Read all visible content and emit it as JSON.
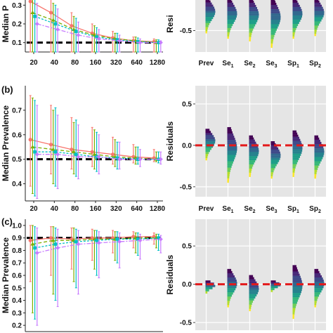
{
  "chart_data": [
    {
      "panel": "a",
      "side": "left",
      "type": "line",
      "ylabel": "Median P",
      "x_labels": [
        "20",
        "40",
        "80",
        "160",
        "320",
        "640",
        "1280"
      ],
      "ylim": [
        0.05,
        0.35
      ],
      "yticks": [
        0.1,
        0.2,
        0.3
      ],
      "reference_y": 0.1,
      "colors": [
        "#f8766d",
        "#7cae00",
        "#00bfc4",
        "#c77cff"
      ],
      "series": [
        {
          "values": [
            0.32,
            0.26,
            0.19,
            0.15,
            0.125,
            0.11,
            0.105
          ],
          "err_low": [
            0.0,
            0.0,
            0.0,
            0.0,
            0.0,
            0.0,
            0.0
          ],
          "err_high": [
            0.35,
            0.33,
            0.26,
            0.2,
            0.16,
            0.13,
            0.12
          ]
        },
        {
          "values": [
            0.26,
            0.22,
            0.17,
            0.14,
            0.12,
            0.11,
            0.1
          ],
          "err_low": [
            0.0,
            0.0,
            0.0,
            0.0,
            0.0,
            0.0,
            0.0
          ],
          "err_high": [
            0.34,
            0.31,
            0.24,
            0.19,
            0.15,
            0.13,
            0.115
          ]
        },
        {
          "values": [
            0.24,
            0.2,
            0.16,
            0.13,
            0.115,
            0.105,
            0.1
          ],
          "err_low": [
            0.0,
            0.0,
            0.0,
            0.0,
            0.0,
            0.0,
            0.0
          ],
          "err_high": [
            0.33,
            0.3,
            0.23,
            0.18,
            0.15,
            0.125,
            0.115
          ]
        },
        {
          "values": [
            0.2,
            0.17,
            0.14,
            0.12,
            0.11,
            0.1,
            0.1
          ],
          "err_low": [
            0.0,
            0.0,
            0.0,
            0.0,
            0.0,
            0.0,
            0.0
          ],
          "err_high": [
            0.31,
            0.28,
            0.21,
            0.17,
            0.14,
            0.12,
            0.11
          ]
        }
      ]
    },
    {
      "panel": "a",
      "side": "right",
      "type": "violin",
      "ylabel": "Resi",
      "categories": [
        "Prev",
        "Se1",
        "Se2",
        "Se3",
        "Sp1",
        "Sp2"
      ],
      "ylim": [
        -0.9,
        0.15
      ],
      "yticks": [
        -0.5
      ],
      "distributions": [
        {
          "min": -0.55,
          "max": 0.1
        },
        {
          "min": -0.65,
          "max": 0.1
        },
        {
          "min": -0.7,
          "max": 0.1
        },
        {
          "min": -0.82,
          "max": 0.1
        },
        {
          "min": -0.65,
          "max": 0.1
        },
        {
          "min": -0.6,
          "max": 0.1
        }
      ]
    },
    {
      "panel": "b",
      "side": "left",
      "type": "line",
      "ylabel": "Median Prevalence",
      "x_labels": [
        "20",
        "40",
        "80",
        "160",
        "320",
        "640",
        "1280"
      ],
      "ylim": [
        0.33,
        0.8
      ],
      "yticks": [
        0.4,
        0.5,
        0.6,
        0.7
      ],
      "reference_y": 0.5,
      "colors": [
        "#f8766d",
        "#7cae00",
        "#00bfc4",
        "#c77cff"
      ],
      "series": [
        {
          "values": [
            0.58,
            0.56,
            0.54,
            0.53,
            0.52,
            0.51,
            0.505
          ],
          "err_low": [
            0.39,
            0.44,
            0.46,
            0.47,
            0.48,
            0.485,
            0.49
          ],
          "err_high": [
            0.76,
            0.72,
            0.67,
            0.63,
            0.59,
            0.56,
            0.54
          ]
        },
        {
          "values": [
            0.55,
            0.54,
            0.53,
            0.52,
            0.51,
            0.505,
            0.5
          ],
          "err_low": [
            0.36,
            0.4,
            0.44,
            0.46,
            0.47,
            0.48,
            0.49
          ],
          "err_high": [
            0.75,
            0.7,
            0.65,
            0.62,
            0.58,
            0.55,
            0.53
          ]
        },
        {
          "values": [
            0.53,
            0.53,
            0.52,
            0.51,
            0.505,
            0.5,
            0.5
          ],
          "err_low": [
            0.35,
            0.39,
            0.43,
            0.45,
            0.46,
            0.48,
            0.485
          ],
          "err_high": [
            0.74,
            0.71,
            0.66,
            0.61,
            0.57,
            0.55,
            0.53
          ]
        },
        {
          "values": [
            0.52,
            0.52,
            0.51,
            0.51,
            0.5,
            0.5,
            0.5
          ],
          "err_low": [
            0.34,
            0.38,
            0.42,
            0.44,
            0.46,
            0.47,
            0.48
          ],
          "err_high": [
            0.72,
            0.68,
            0.64,
            0.6,
            0.57,
            0.54,
            0.53
          ]
        }
      ]
    },
    {
      "panel": "b",
      "side": "right",
      "type": "violin",
      "ylabel": "Residuals",
      "categories": [
        "Prev",
        "Se1",
        "Se2",
        "Se3",
        "Sp1",
        "Sp2"
      ],
      "ylim": [
        -0.62,
        0.72
      ],
      "yticks": [
        -0.5,
        0.0,
        0.5
      ],
      "reference_y": 0.0,
      "distributions": [
        {
          "min": -0.18,
          "max": 0.2
        },
        {
          "min": -0.45,
          "max": 0.22
        },
        {
          "min": -0.38,
          "max": 0.12
        },
        {
          "min": -0.4,
          "max": 0.05
        },
        {
          "min": -0.38,
          "max": 0.18
        },
        {
          "min": -0.4,
          "max": 0.12
        }
      ]
    },
    {
      "panel": "c",
      "side": "left",
      "type": "line",
      "ylabel": "Median Prevalence",
      "x_labels": [
        "20",
        "40",
        "80",
        "160",
        "320",
        "640",
        "1280"
      ],
      "ylim": [
        0.15,
        1.05
      ],
      "yticks": [
        0.2,
        0.3,
        0.4,
        0.5,
        0.6,
        0.7,
        0.8,
        0.9,
        1.0
      ],
      "reference_y": 0.9,
      "colors": [
        "#f8766d",
        "#7cae00",
        "#00bfc4",
        "#c77cff"
      ],
      "series": [
        {
          "values": [
            0.88,
            0.9,
            0.89,
            0.9,
            0.9,
            0.91,
            0.91
          ],
          "err_low": [
            0.55,
            0.6,
            0.65,
            0.72,
            0.78,
            0.82,
            0.85
          ],
          "err_high": [
            1.0,
            0.99,
            0.98,
            0.97,
            0.96,
            0.95,
            0.94
          ]
        },
        {
          "values": [
            0.85,
            0.88,
            0.88,
            0.89,
            0.89,
            0.9,
            0.9
          ],
          "err_low": [
            0.3,
            0.45,
            0.55,
            0.65,
            0.72,
            0.78,
            0.82
          ],
          "err_high": [
            1.0,
            0.99,
            0.98,
            0.96,
            0.95,
            0.94,
            0.93
          ]
        },
        {
          "values": [
            0.82,
            0.85,
            0.87,
            0.88,
            0.89,
            0.89,
            0.9
          ],
          "err_low": [
            0.25,
            0.4,
            0.5,
            0.6,
            0.7,
            0.76,
            0.8
          ],
          "err_high": [
            0.99,
            0.98,
            0.97,
            0.96,
            0.95,
            0.94,
            0.93
          ]
        },
        {
          "values": [
            0.78,
            0.82,
            0.85,
            0.86,
            0.87,
            0.88,
            0.89
          ],
          "err_low": [
            0.2,
            0.35,
            0.45,
            0.58,
            0.66,
            0.73,
            0.78
          ],
          "err_high": [
            0.98,
            0.97,
            0.96,
            0.95,
            0.94,
            0.93,
            0.92
          ]
        }
      ]
    },
    {
      "panel": "c",
      "side": "right",
      "type": "violin",
      "ylabel": "Residuals",
      "categories": [
        "Prev",
        "Se1",
        "Se2",
        "Se3",
        "Sp1",
        "Sp2"
      ],
      "ylim": [
        -0.6,
        0.85
      ],
      "yticks": [
        -0.5,
        0.0,
        0.5
      ],
      "reference_y": 0.0,
      "distributions": [
        {
          "min": -0.12,
          "max": 0.05
        },
        {
          "min": -0.3,
          "max": 0.2
        },
        {
          "min": -0.35,
          "max": 0.12
        },
        {
          "min": -0.1,
          "max": 0.05
        },
        {
          "min": -0.45,
          "max": 0.25
        },
        {
          "min": -0.3,
          "max": 0.2
        }
      ]
    }
  ],
  "panel_labels": [
    "(b)",
    "(c)"
  ],
  "violin_palette": [
    "#fde725",
    "#b5de2b",
    "#6ece58",
    "#35b779",
    "#1f9e89",
    "#26828e",
    "#31688e",
    "#3e4989",
    "#482878",
    "#440154"
  ],
  "category_display": [
    {
      "main": "Prev",
      "sub": ""
    },
    {
      "main": "Se",
      "sub": "1"
    },
    {
      "main": "Se",
      "sub": "2"
    },
    {
      "main": "Se",
      "sub": "3"
    },
    {
      "main": "Sp",
      "sub": "1"
    },
    {
      "main": "Sp",
      "sub": "2"
    }
  ]
}
